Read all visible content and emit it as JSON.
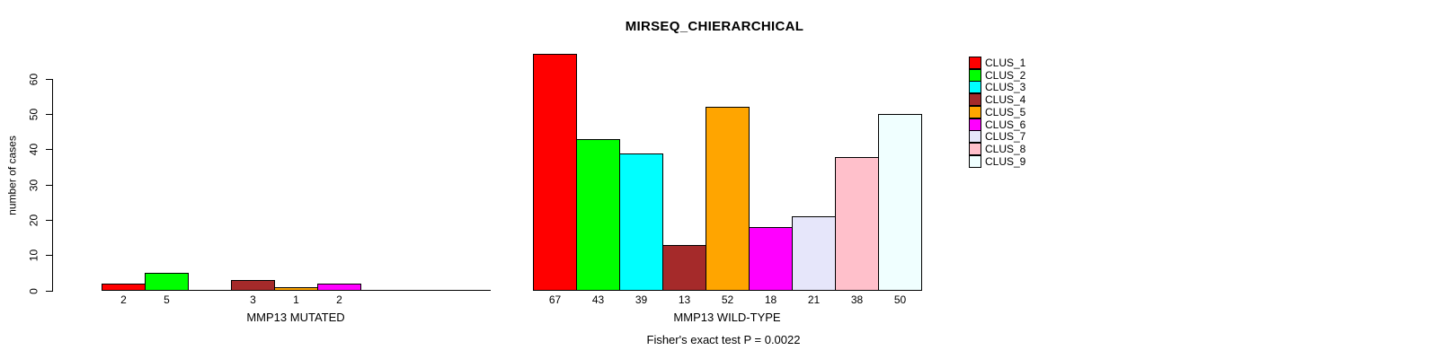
{
  "chart_data": {
    "type": "bar",
    "title": "MIRSEQ_CHIERARCHICAL",
    "ylabel": "number of cases",
    "ylim": [
      0,
      60
    ],
    "yticks": [
      "0",
      "10",
      "20",
      "30",
      "40",
      "50",
      "60"
    ],
    "grid": false,
    "legend_position": "right",
    "series_labels": [
      "CLUS_1",
      "CLUS_2",
      "CLUS_3",
      "CLUS_4",
      "CLUS_5",
      "CLUS_6",
      "CLUS_7",
      "CLUS_8",
      "CLUS_9"
    ],
    "series_colors": [
      "#ff0000",
      "#00ff00",
      "#00ffff",
      "#a52a2a",
      "#ffa500",
      "#ff00ff",
      "#e6e6fa",
      "#ffc0cb",
      "#f0ffff"
    ],
    "groups": [
      {
        "label": "MMP13 MUTATED",
        "values": [
          2,
          5,
          0,
          3,
          1,
          2,
          0,
          0,
          0
        ]
      },
      {
        "label": "MMP13 WILD-TYPE",
        "values": [
          67,
          43,
          39,
          13,
          52,
          18,
          21,
          38,
          50
        ]
      }
    ],
    "footnote": "Fisher's exact test P = 0.0022"
  }
}
